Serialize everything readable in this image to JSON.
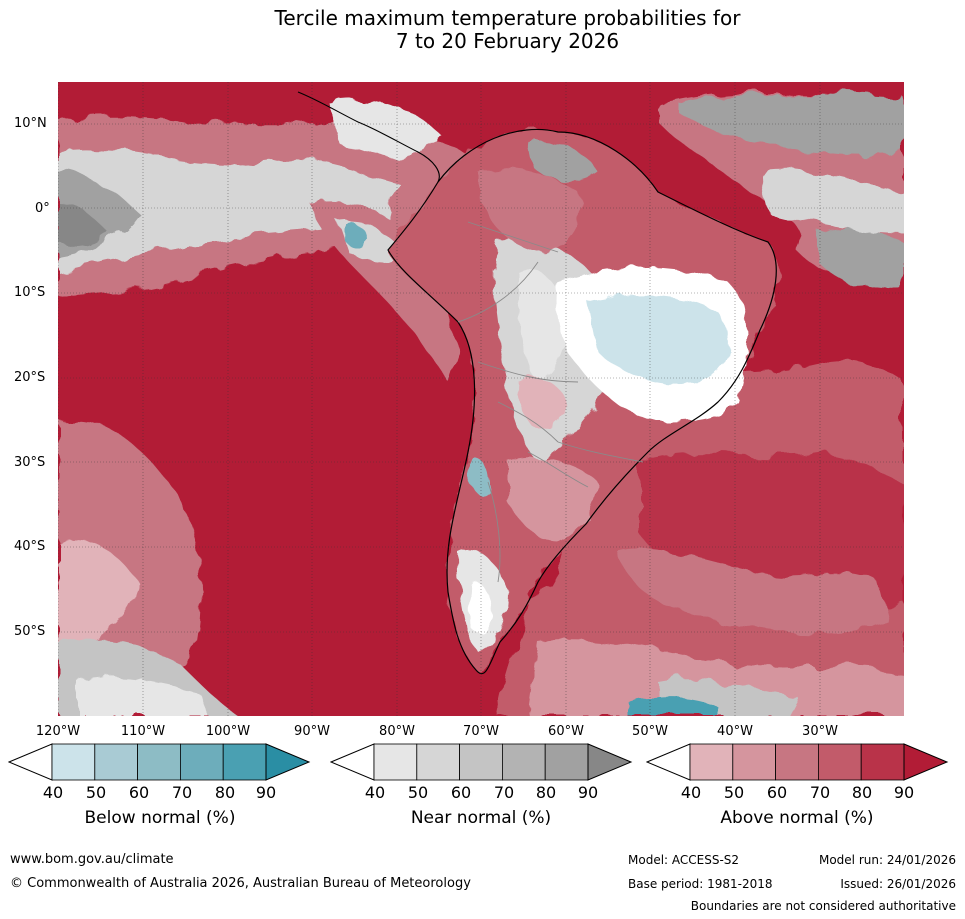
{
  "title": {
    "line1": "Tercile maximum temperature probabilities for",
    "line2": "7 to 20 February 2026"
  },
  "map": {
    "lat_labels": [
      "10°N",
      "0°",
      "10°S",
      "20°S",
      "30°S",
      "40°S",
      "50°S"
    ],
    "lon_labels": [
      "120°W",
      "110°W",
      "100°W",
      "90°W",
      "80°W",
      "70°W",
      "60°W",
      "50°W",
      "40°W",
      "30°W"
    ],
    "colors": {
      "ocean_above": "#b21c36",
      "land_outline": "#000000",
      "border": "#8a8a8a"
    }
  },
  "legend": {
    "below": {
      "title": "Below normal (%)",
      "ticks": [
        "40",
        "50",
        "60",
        "70",
        "80",
        "90"
      ],
      "colors": [
        "#ffffff",
        "#cce3ea",
        "#a9cbd4",
        "#8dbcc5",
        "#6dadbb",
        "#4aa0b2",
        "#2a8ea4"
      ]
    },
    "near": {
      "title": "Near normal (%)",
      "ticks": [
        "40",
        "50",
        "60",
        "70",
        "80",
        "90"
      ],
      "colors": [
        "#ffffff",
        "#e6e6e6",
        "#d6d6d6",
        "#c4c4c4",
        "#b3b3b3",
        "#a1a1a1",
        "#878787"
      ]
    },
    "above": {
      "title": "Above normal (%)",
      "ticks": [
        "40",
        "50",
        "60",
        "70",
        "80",
        "90"
      ],
      "colors": [
        "#ffffff",
        "#e1b3b9",
        "#d5959e",
        "#c77682",
        "#c25b6a",
        "#b93349",
        "#b21c36"
      ]
    }
  },
  "footer": {
    "url": "www.bom.gov.au/climate",
    "copyright": "© Commonwealth of Australia 2026, Australian Bureau of Meteorology",
    "model": "Model: ACCESS-S2",
    "model_run": "Model run: 24/01/2026",
    "base_period": "Base period: 1981-2018",
    "issued": "Issued: 26/01/2026",
    "disclaimer": "Boundaries are not considered authoritative"
  }
}
